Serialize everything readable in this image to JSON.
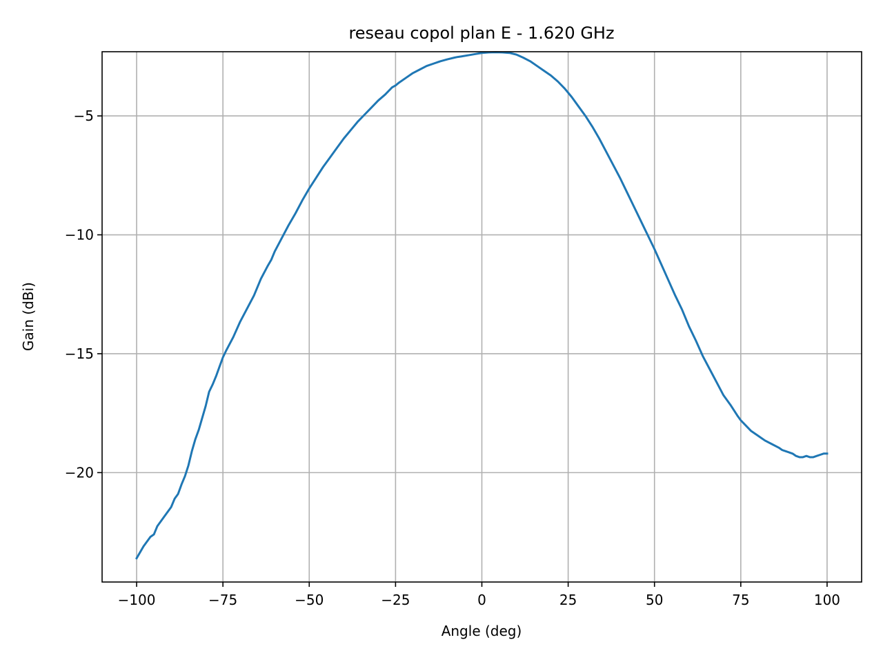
{
  "chart_data": {
    "type": "line",
    "title": "reseau copol plan E - 1.620 GHz",
    "xlabel": "Angle (deg)",
    "ylabel": "Gain (dBi)",
    "xlim": [
      -110,
      110
    ],
    "ylim": [
      -24.6,
      -2.3
    ],
    "xticks": [
      -100,
      -75,
      -50,
      -25,
      0,
      25,
      50,
      75,
      100
    ],
    "xtick_labels": [
      "−100",
      "−75",
      "−50",
      "−25",
      "0",
      "25",
      "50",
      "75",
      "100"
    ],
    "yticks": [
      -5,
      -10,
      -15,
      -20
    ],
    "ytick_labels": [
      "−5",
      "−10",
      "−15",
      "−20"
    ],
    "grid": true,
    "line_color": "#1f77b4",
    "series": [
      {
        "x": [
          -100,
          -98,
          -96,
          -95,
          -94,
          -92,
          -90,
          -89,
          -88,
          -87,
          -86,
          -85,
          -84,
          -83,
          -82,
          -81,
          -80,
          -79,
          -78,
          -77,
          -76,
          -75,
          -74,
          -72,
          -70,
          -68,
          -66,
          -64,
          -62,
          -61,
          -60,
          -58,
          -56,
          -54,
          -52,
          -50,
          -48,
          -46,
          -44,
          -42,
          -40,
          -38,
          -36,
          -34,
          -32,
          -30,
          -28,
          -26,
          -25,
          -24,
          -22,
          -20,
          -18,
          -16,
          -14,
          -12,
          -10,
          -8,
          -7,
          -6,
          -4,
          -2,
          0,
          2,
          4,
          6,
          8,
          10,
          12,
          14,
          16,
          18,
          20,
          22,
          24,
          26,
          28,
          30,
          32,
          34,
          36,
          38,
          40,
          42,
          44,
          46,
          47,
          48,
          50,
          52,
          54,
          56,
          58,
          60,
          62,
          64,
          66,
          68,
          70,
          72,
          74,
          75,
          76,
          78,
          80,
          81,
          82,
          84,
          86,
          87,
          88,
          90,
          91,
          92,
          93,
          94,
          95,
          96,
          97,
          98,
          99,
          100
        ],
        "y": [
          -23.6,
          -23.1,
          -22.7,
          -22.6,
          -22.25,
          -21.85,
          -21.45,
          -21.1,
          -20.9,
          -20.5,
          -20.15,
          -19.7,
          -19.1,
          -18.6,
          -18.2,
          -17.7,
          -17.2,
          -16.6,
          -16.3,
          -15.95,
          -15.55,
          -15.15,
          -14.85,
          -14.3,
          -13.65,
          -13.1,
          -12.55,
          -11.85,
          -11.3,
          -11.05,
          -10.7,
          -10.15,
          -9.6,
          -9.1,
          -8.55,
          -8.05,
          -7.6,
          -7.15,
          -6.75,
          -6.35,
          -5.95,
          -5.6,
          -5.25,
          -4.95,
          -4.65,
          -4.35,
          -4.1,
          -3.8,
          -3.72,
          -3.6,
          -3.4,
          -3.2,
          -3.05,
          -2.9,
          -2.8,
          -2.7,
          -2.62,
          -2.55,
          -2.52,
          -2.5,
          -2.45,
          -2.4,
          -2.35,
          -2.33,
          -2.32,
          -2.33,
          -2.35,
          -2.42,
          -2.55,
          -2.7,
          -2.9,
          -3.1,
          -3.3,
          -3.55,
          -3.85,
          -4.2,
          -4.6,
          -5.0,
          -5.45,
          -5.95,
          -6.5,
          -7.05,
          -7.6,
          -8.2,
          -8.8,
          -9.4,
          -9.7,
          -10.0,
          -10.6,
          -11.25,
          -11.9,
          -12.55,
          -13.15,
          -13.85,
          -14.45,
          -15.1,
          -15.65,
          -16.2,
          -16.75,
          -17.15,
          -17.6,
          -17.8,
          -17.95,
          -18.25,
          -18.45,
          -18.55,
          -18.65,
          -18.8,
          -18.95,
          -19.05,
          -19.1,
          -19.2,
          -19.3,
          -19.35,
          -19.35,
          -19.3,
          -19.35,
          -19.35,
          -19.3,
          -19.25,
          -19.2,
          -19.2
        ]
      }
    ]
  }
}
